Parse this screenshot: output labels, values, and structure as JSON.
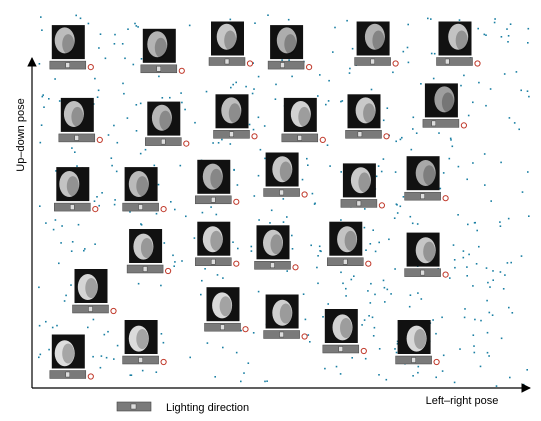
{
  "axes": {
    "x_label": "Left–right pose",
    "y_label": "Up–down pose"
  },
  "legend": {
    "label": "Lighting direction"
  },
  "colors": {
    "points": "#1a7fa3",
    "marker": "#c0392b",
    "axis": "#000000",
    "thumb_bg": "#111111",
    "slider_bg": "#7a7a7a"
  },
  "faces": [
    {
      "pose_h": 0.05,
      "pose_v": 0.92,
      "face_brightness": 0.65,
      "light": 0.5
    },
    {
      "pose_h": 0.25,
      "pose_v": 0.91,
      "face_brightness": 0.6,
      "light": 0.5
    },
    {
      "pose_h": 0.4,
      "pose_v": 0.93,
      "face_brightness": 0.72,
      "light": 0.5
    },
    {
      "pose_h": 0.53,
      "pose_v": 0.92,
      "face_brightness": 0.55,
      "light": 0.4
    },
    {
      "pose_h": 0.72,
      "pose_v": 0.93,
      "face_brightness": 0.58,
      "light": 0.5
    },
    {
      "pose_h": 0.9,
      "pose_v": 0.93,
      "face_brightness": 0.7,
      "light": 0.3
    },
    {
      "pose_h": 0.07,
      "pose_v": 0.72,
      "face_brightness": 0.68,
      "light": 0.5
    },
    {
      "pose_h": 0.26,
      "pose_v": 0.71,
      "face_brightness": 0.62,
      "light": 0.5
    },
    {
      "pose_h": 0.41,
      "pose_v": 0.73,
      "face_brightness": 0.66,
      "light": 0.5
    },
    {
      "pose_h": 0.56,
      "pose_v": 0.72,
      "face_brightness": 0.8,
      "light": 0.5
    },
    {
      "pose_h": 0.7,
      "pose_v": 0.73,
      "face_brightness": 0.74,
      "light": 0.4
    },
    {
      "pose_h": 0.87,
      "pose_v": 0.76,
      "face_brightness": 0.45,
      "light": 0.3
    },
    {
      "pose_h": 0.06,
      "pose_v": 0.53,
      "face_brightness": 0.7,
      "light": 0.5
    },
    {
      "pose_h": 0.21,
      "pose_v": 0.53,
      "face_brightness": 0.64,
      "light": 0.5
    },
    {
      "pose_h": 0.37,
      "pose_v": 0.55,
      "face_brightness": 0.6,
      "light": 0.5
    },
    {
      "pose_h": 0.52,
      "pose_v": 0.57,
      "face_brightness": 0.72,
      "light": 0.5
    },
    {
      "pose_h": 0.69,
      "pose_v": 0.54,
      "face_brightness": 0.74,
      "light": 0.5
    },
    {
      "pose_h": 0.83,
      "pose_v": 0.56,
      "face_brightness": 0.52,
      "light": 0.5
    },
    {
      "pose_h": 0.22,
      "pose_v": 0.36,
      "face_brightness": 0.75,
      "light": 0.5
    },
    {
      "pose_h": 0.37,
      "pose_v": 0.38,
      "face_brightness": 0.8,
      "light": 0.5
    },
    {
      "pose_h": 0.5,
      "pose_v": 0.37,
      "face_brightness": 0.72,
      "light": 0.5
    },
    {
      "pose_h": 0.66,
      "pose_v": 0.38,
      "face_brightness": 0.7,
      "light": 0.5
    },
    {
      "pose_h": 0.83,
      "pose_v": 0.35,
      "face_brightness": 0.72,
      "light": 0.5
    },
    {
      "pose_h": 0.1,
      "pose_v": 0.25,
      "face_brightness": 0.82,
      "light": 0.5
    },
    {
      "pose_h": 0.39,
      "pose_v": 0.2,
      "face_brightness": 0.85,
      "light": 0.5
    },
    {
      "pose_h": 0.52,
      "pose_v": 0.18,
      "face_brightness": 0.78,
      "light": 0.5
    },
    {
      "pose_h": 0.65,
      "pose_v": 0.14,
      "face_brightness": 0.8,
      "light": 0.5
    },
    {
      "pose_h": 0.05,
      "pose_v": 0.07,
      "face_brightness": 0.88,
      "light": 0.5
    },
    {
      "pose_h": 0.21,
      "pose_v": 0.11,
      "face_brightness": 0.86,
      "light": 0.5
    },
    {
      "pose_h": 0.81,
      "pose_v": 0.11,
      "face_brightness": 0.84,
      "light": 0.5
    }
  ]
}
